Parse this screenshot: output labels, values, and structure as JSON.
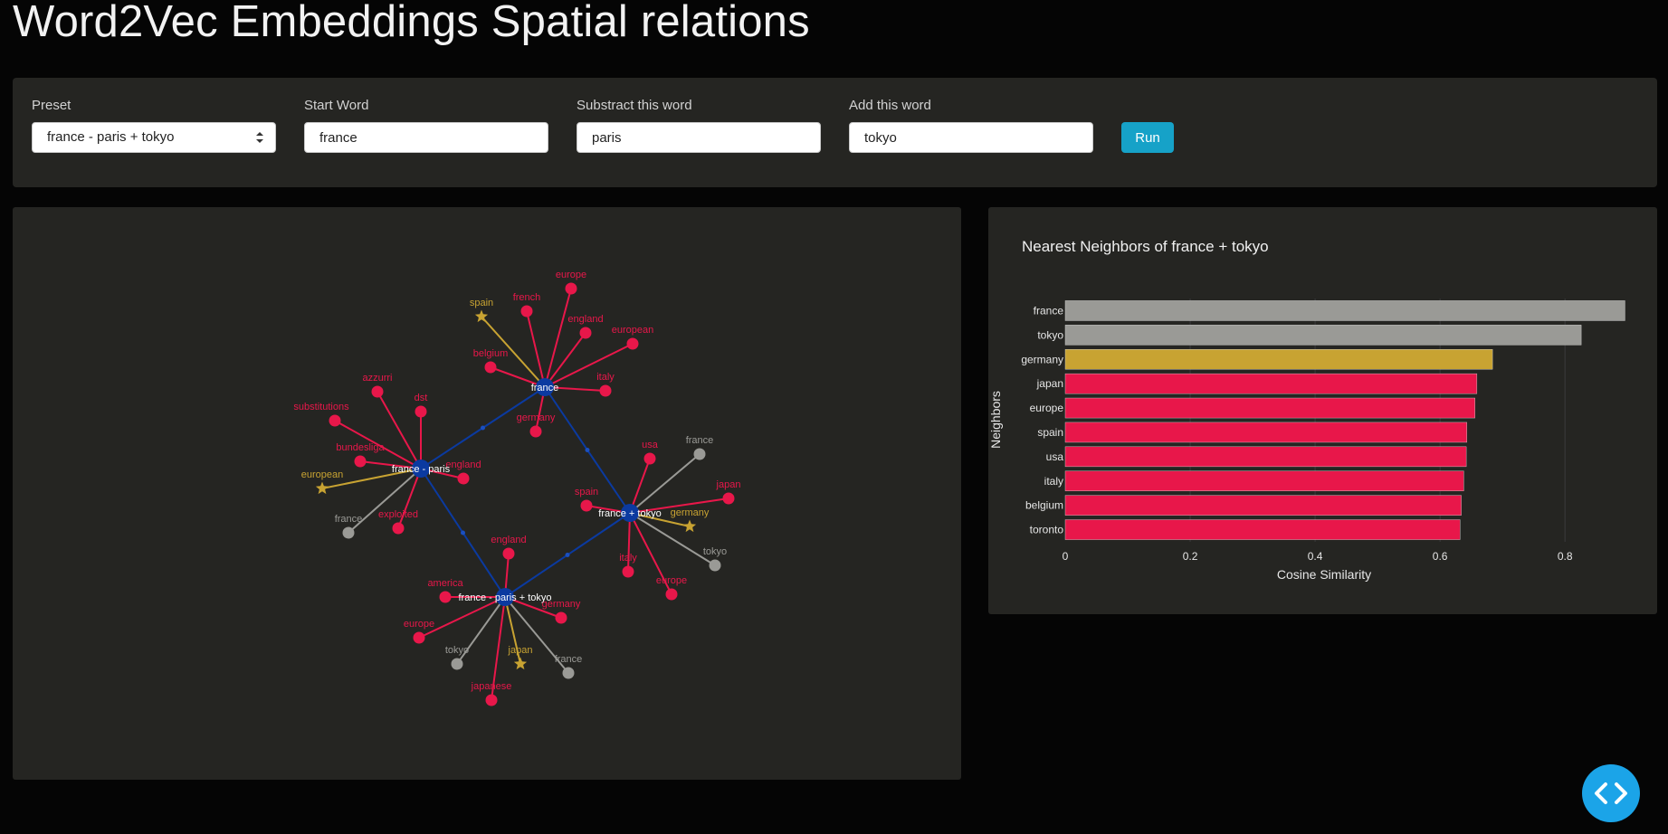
{
  "title": "Word2Vec Embeddings Spatial relations",
  "controls": {
    "preset_label": "Preset",
    "preset_value": "france - paris + tokyo",
    "start_label": "Start Word",
    "start_value": "france",
    "subtract_label": "Substract this word",
    "subtract_value": "paris",
    "add_label": "Add this word",
    "add_value": "tokyo",
    "run_label": "Run"
  },
  "colors": {
    "center": "#0b3aa0",
    "neighbor": "#e8174a",
    "input": "#9a9a96",
    "highlight": "#c8a332",
    "accent": "#16a2c8"
  },
  "graph": {
    "centers": [
      {
        "id": "france",
        "label": "france"
      },
      {
        "id": "france-paris",
        "label": "france - paris"
      },
      {
        "id": "france+tokyo",
        "label": "france + tokyo"
      },
      {
        "id": "france-paris+tokyo",
        "label": "france - paris + tokyo"
      }
    ],
    "center_links": [
      [
        "france",
        "france-paris"
      ],
      [
        "france",
        "france+tokyo"
      ],
      [
        "france-paris",
        "france-paris+tokyo"
      ],
      [
        "france+tokyo",
        "france-paris+tokyo"
      ]
    ],
    "neighbors": [
      {
        "center": "france",
        "label": "europe",
        "kind": "neighbor"
      },
      {
        "center": "france",
        "label": "french",
        "kind": "neighbor"
      },
      {
        "center": "france",
        "label": "spain",
        "kind": "highlight"
      },
      {
        "center": "france",
        "label": "england",
        "kind": "neighbor"
      },
      {
        "center": "france",
        "label": "european",
        "kind": "neighbor"
      },
      {
        "center": "france",
        "label": "belgium",
        "kind": "neighbor"
      },
      {
        "center": "france",
        "label": "italy",
        "kind": "neighbor"
      },
      {
        "center": "france",
        "label": "germany",
        "kind": "neighbor"
      },
      {
        "center": "france-paris",
        "label": "azzurri",
        "kind": "neighbor"
      },
      {
        "center": "france-paris",
        "label": "dst",
        "kind": "neighbor"
      },
      {
        "center": "france-paris",
        "label": "substitutions",
        "kind": "neighbor"
      },
      {
        "center": "france-paris",
        "label": "bundesliga",
        "kind": "neighbor"
      },
      {
        "center": "france-paris",
        "label": "england",
        "kind": "neighbor"
      },
      {
        "center": "france-paris",
        "label": "european",
        "kind": "highlight"
      },
      {
        "center": "france-paris",
        "label": "france",
        "kind": "input"
      },
      {
        "center": "france-paris",
        "label": "exploited",
        "kind": "neighbor"
      },
      {
        "center": "france+tokyo",
        "label": "usa",
        "kind": "neighbor"
      },
      {
        "center": "france+tokyo",
        "label": "france",
        "kind": "input"
      },
      {
        "center": "france+tokyo",
        "label": "japan",
        "kind": "neighbor"
      },
      {
        "center": "france+tokyo",
        "label": "spain",
        "kind": "neighbor"
      },
      {
        "center": "france+tokyo",
        "label": "germany",
        "kind": "highlight"
      },
      {
        "center": "france+tokyo",
        "label": "tokyo",
        "kind": "input"
      },
      {
        "center": "france+tokyo",
        "label": "italy",
        "kind": "neighbor"
      },
      {
        "center": "france+tokyo",
        "label": "europe",
        "kind": "neighbor"
      },
      {
        "center": "france-paris+tokyo",
        "label": "england",
        "kind": "neighbor"
      },
      {
        "center": "france-paris+tokyo",
        "label": "america",
        "kind": "neighbor"
      },
      {
        "center": "france-paris+tokyo",
        "label": "germany",
        "kind": "neighbor"
      },
      {
        "center": "france-paris+tokyo",
        "label": "europe",
        "kind": "neighbor"
      },
      {
        "center": "france-paris+tokyo",
        "label": "tokyo",
        "kind": "input"
      },
      {
        "center": "france-paris+tokyo",
        "label": "japan",
        "kind": "highlight"
      },
      {
        "center": "france-paris+tokyo",
        "label": "france",
        "kind": "input"
      },
      {
        "center": "france-paris+tokyo",
        "label": "japanese",
        "kind": "neighbor"
      }
    ]
  },
  "chart_data": {
    "type": "bar",
    "orientation": "horizontal",
    "title": "Nearest Neighbors of france + tokyo",
    "xlabel": "Cosine Similarity",
    "ylabel": "Neighbors",
    "xlim": [
      0,
      0.92
    ],
    "xticks": [
      0,
      0.2,
      0.4,
      0.6,
      0.8
    ],
    "grid": true,
    "categories": [
      "france",
      "tokyo",
      "germany",
      "japan",
      "europe",
      "spain",
      "usa",
      "italy",
      "belgium",
      "toronto"
    ],
    "values": [
      0.896,
      0.826,
      0.684,
      0.659,
      0.656,
      0.643,
      0.642,
      0.638,
      0.634,
      0.632
    ],
    "bar_colors": [
      "#9a9a96",
      "#9a9a96",
      "#c8a332",
      "#e8174a",
      "#e8174a",
      "#e8174a",
      "#e8174a",
      "#e8174a",
      "#e8174a",
      "#e8174a"
    ]
  }
}
